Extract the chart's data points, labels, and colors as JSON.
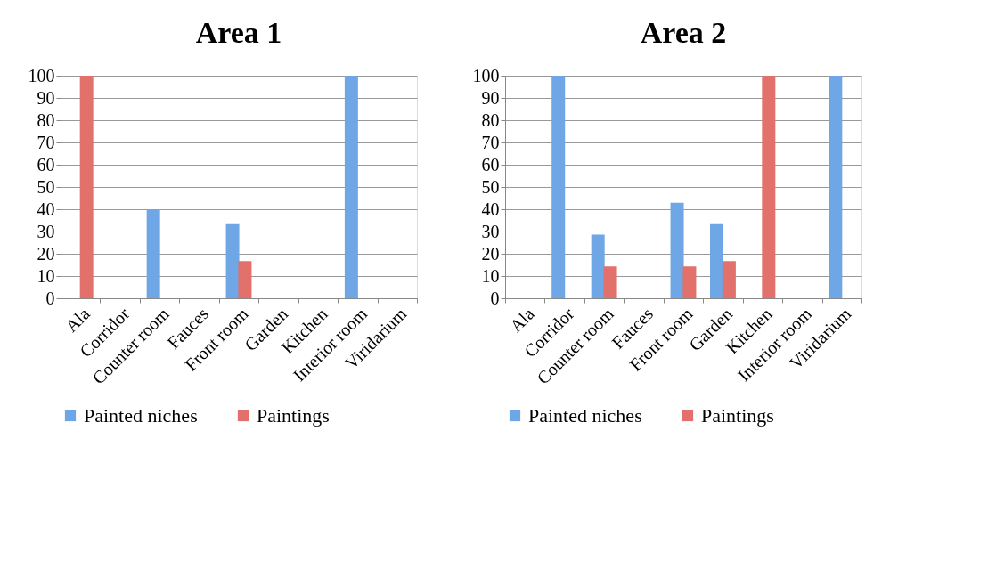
{
  "chart_data": [
    {
      "type": "bar",
      "title": "Area 1",
      "categories": [
        "Ala",
        "Corridor",
        "Counter room",
        "Fauces",
        "Front room",
        "Garden",
        "Kitchen",
        "Interior room",
        "Viridarium"
      ],
      "series": [
        {
          "name": "Painted niches",
          "color": "#6fa6e6",
          "values": [
            null,
            null,
            40,
            null,
            33.3,
            null,
            null,
            100,
            null
          ]
        },
        {
          "name": "Paintings",
          "color": "#e2716b",
          "values": [
            100,
            null,
            null,
            null,
            16.7,
            null,
            null,
            null,
            null
          ]
        }
      ],
      "ylim": [
        0,
        100
      ],
      "yticks": [
        0,
        10,
        20,
        30,
        40,
        50,
        60,
        70,
        80,
        90,
        100
      ],
      "grid": "y",
      "legend": "bottom"
    },
    {
      "type": "bar",
      "title": "Area 2",
      "categories": [
        "Ala",
        "Corridor",
        "Counter room",
        "Fauces",
        "Front room",
        "Garden",
        "Kitchen",
        "Interior room",
        "Viridarium"
      ],
      "series": [
        {
          "name": "Painted niches",
          "color": "#6fa6e6",
          "values": [
            null,
            100,
            28.6,
            null,
            42.9,
            33.3,
            null,
            null,
            100
          ]
        },
        {
          "name": "Paintings",
          "color": "#e2716b",
          "values": [
            null,
            null,
            14.3,
            null,
            14.3,
            16.7,
            100,
            null,
            null
          ]
        }
      ],
      "ylim": [
        0,
        100
      ],
      "yticks": [
        0,
        10,
        20,
        30,
        40,
        50,
        60,
        70,
        80,
        90,
        100
      ],
      "grid": "y",
      "legend": "bottom"
    }
  ]
}
